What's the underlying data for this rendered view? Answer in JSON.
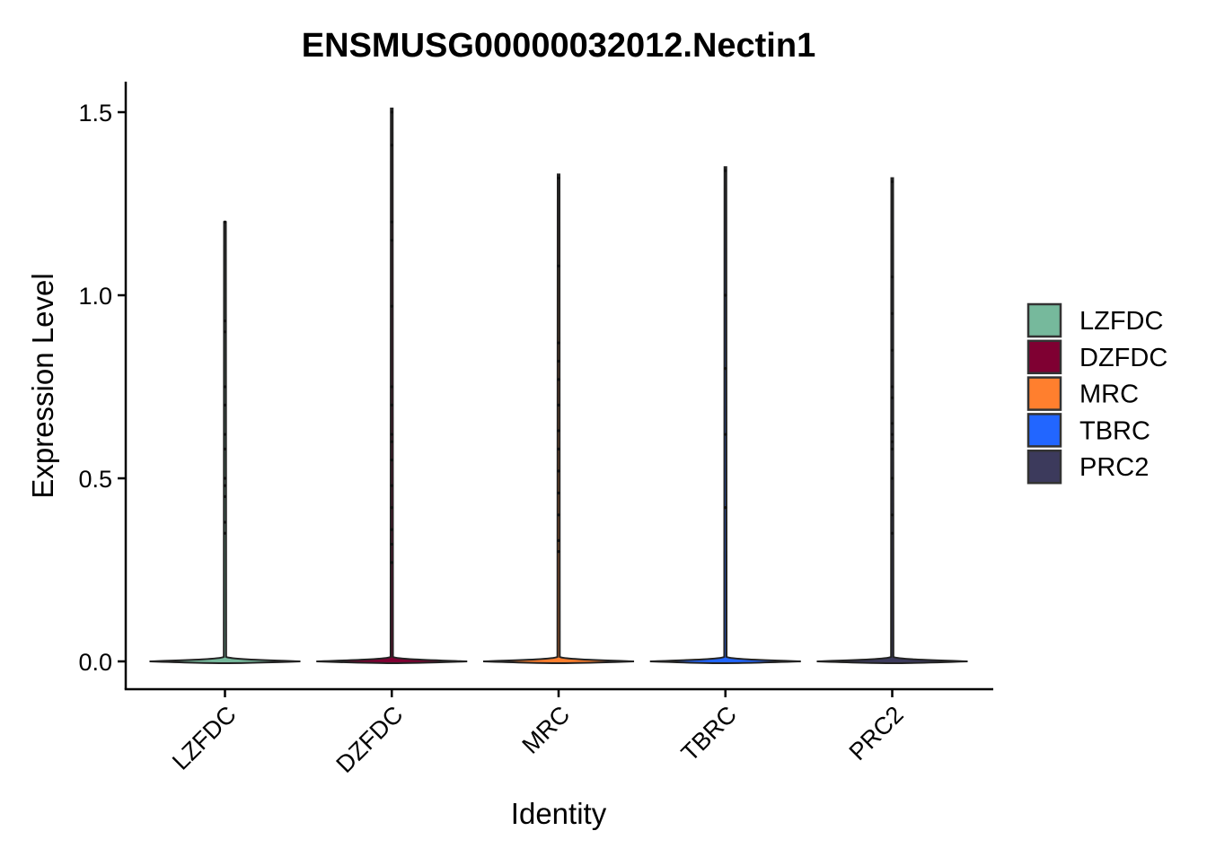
{
  "chart_data": {
    "type": "violin",
    "title": "ENSMUSG00000032012.Nectin1",
    "xlabel": "Identity",
    "ylabel": "Expression Level",
    "categories": [
      "LZFDC",
      "DZFDC",
      "MRC",
      "TBRC",
      "PRC2"
    ],
    "colors": [
      "#76B99C",
      "#7F0032",
      "#FF7F2E",
      "#2266FF",
      "#3C3A5C"
    ],
    "ylim": [
      -0.07,
      1.58
    ],
    "yticks": [
      0.0,
      0.5,
      1.0,
      1.5
    ],
    "ytick_labels": [
      "0.0",
      "0.5",
      "1.0",
      "1.5"
    ],
    "grid": false,
    "legend": {
      "position": "right",
      "entries": [
        "LZFDC",
        "DZFDC",
        "MRC",
        "TBRC",
        "PRC2"
      ]
    },
    "series": [
      {
        "category": "LZFDC",
        "max": 1.2,
        "points": [
          0.35,
          0.38,
          0.45,
          0.48,
          0.5,
          0.58,
          0.62,
          0.7,
          0.75,
          0.9,
          0.93,
          1.2
        ]
      },
      {
        "category": "DZFDC",
        "max": 1.51,
        "points": [
          0.27,
          0.32,
          0.36,
          0.42,
          0.48,
          0.55,
          0.6,
          0.62,
          0.7,
          0.75,
          0.97,
          1.15,
          1.2,
          1.41,
          1.5
        ]
      },
      {
        "category": "MRC",
        "max": 1.33,
        "points": [
          0.3,
          0.33,
          0.4,
          0.46,
          0.52,
          0.58,
          0.63,
          0.7,
          0.77,
          0.82,
          0.87,
          1.08,
          1.32
        ]
      },
      {
        "category": "TBRC",
        "max": 1.35,
        "points": [
          0.42,
          0.62,
          0.8,
          1.0,
          1.34
        ]
      },
      {
        "category": "PRC2",
        "max": 1.32,
        "points": [
          0.35,
          0.4,
          0.5,
          0.58,
          0.6,
          0.62,
          0.65,
          0.72,
          0.75,
          0.85,
          0.95,
          1.05,
          1.31
        ]
      }
    ]
  }
}
